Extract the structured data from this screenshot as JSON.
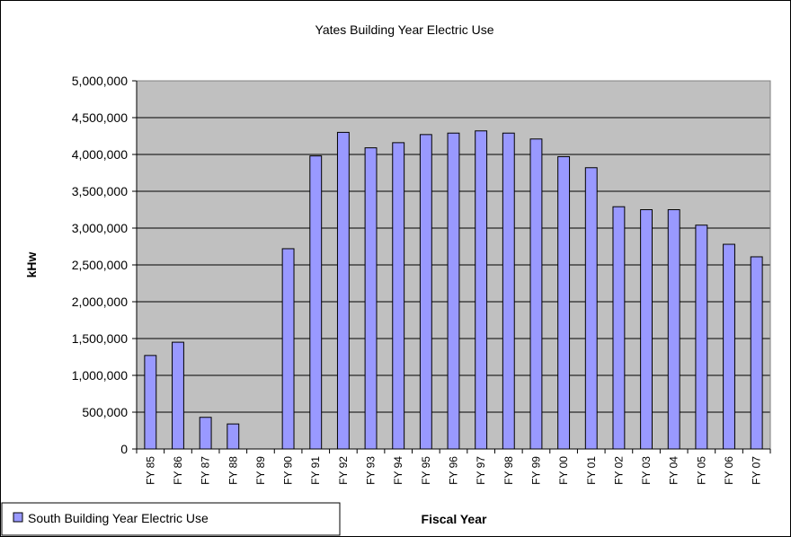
{
  "chart_data": {
    "type": "bar",
    "title": "Yates Building Year Electric Use",
    "xlabel": "Fiscal Year",
    "ylabel": "kHw",
    "ylim": [
      0,
      5000000
    ],
    "yticks": [
      0,
      500000,
      1000000,
      1500000,
      2000000,
      2500000,
      3000000,
      3500000,
      4000000,
      4500000,
      5000000
    ],
    "ytick_labels": [
      "0",
      "500,000",
      "1,000,000",
      "1,500,000",
      "2,000,000",
      "2,500,000",
      "3,000,000",
      "3,500,000",
      "4,000,000",
      "4,500,000",
      "5,000,000"
    ],
    "grid": true,
    "legend_position": "bottom-left",
    "categories": [
      "FY 85",
      "FY 86",
      "FY 87",
      "FY 88",
      "FY 89",
      "FY 90",
      "FY 91",
      "FY 92",
      "FY 93",
      "FY 94",
      "FY 95",
      "FY 96",
      "FY 97",
      "FY 98",
      "FY 99",
      "FY 00",
      "FY 01",
      "FY 02",
      "FY 03",
      "FY 04",
      "FY 05",
      "FY 06",
      "FY 07"
    ],
    "series": [
      {
        "name": "South Building Year Electric Use",
        "color": "#9999FF",
        "values": [
          1270000,
          1450000,
          430000,
          340000,
          0,
          2720000,
          3980000,
          4300000,
          4090000,
          4160000,
          4270000,
          4290000,
          4320000,
          4290000,
          4210000,
          3970000,
          3820000,
          3290000,
          3250000,
          3250000,
          3040000,
          2780000,
          2610000
        ]
      }
    ],
    "plot_background": "#C0C0C0"
  }
}
